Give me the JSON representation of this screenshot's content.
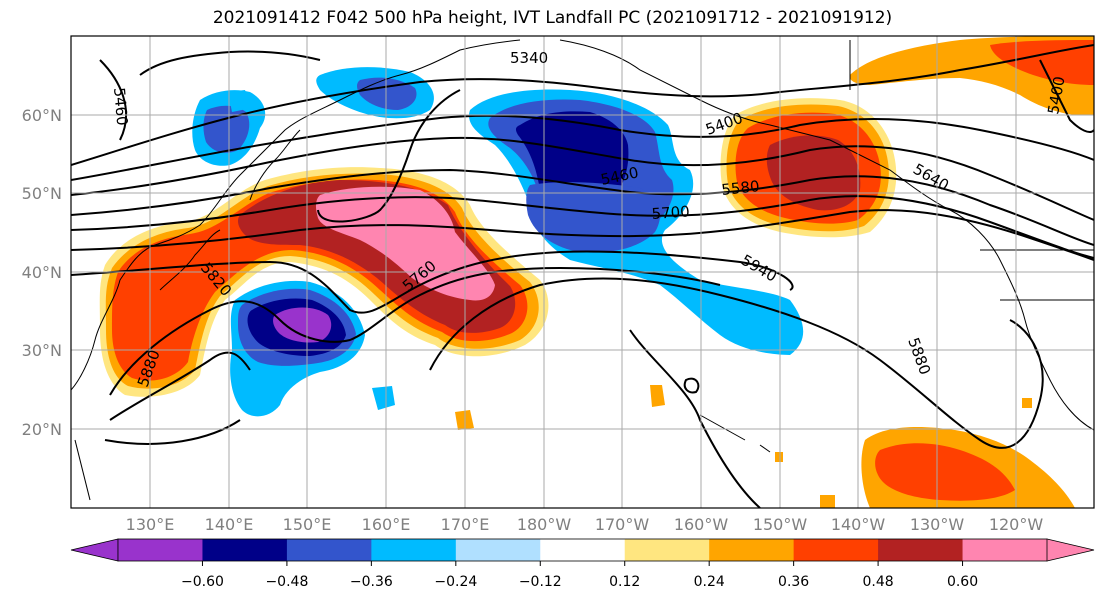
{
  "title": "2021091412 F042 500 hPa height, IVT Landfall PC (2021091712 - 2021091912)",
  "lat_labels": [
    "60°N",
    "50°N",
    "40°N",
    "30°N",
    "20°N"
  ],
  "lon_labels": [
    "130°E",
    "140°E",
    "150°E",
    "160°E",
    "170°E",
    "180°W",
    "170°W",
    "160°W",
    "150°W",
    "140°W",
    "130°W",
    "120°W"
  ],
  "contour_labels": [
    "5340",
    "5460",
    "5400",
    "5460",
    "5580",
    "5700",
    "5640",
    "5400",
    "5760",
    "5820",
    "5880",
    "5940",
    "5880"
  ],
  "colorbar": {
    "ticks": [
      "−0.60",
      "−0.48",
      "−0.36",
      "−0.24",
      "−0.12",
      "0.12",
      "0.24",
      "0.36",
      "0.48",
      "0.60"
    ],
    "colors": [
      "#9933cc",
      "#000088",
      "#3355cc",
      "#00bbff",
      "#b0e0ff",
      "#ffffff",
      "#ffe680",
      "#ffa500",
      "#ff4000",
      "#b22222",
      "#ff85b0",
      "#ff85b0"
    ]
  },
  "colors": {
    "grid": "#aaaaaa",
    "coast": "#000000",
    "contour": "#000000"
  }
}
